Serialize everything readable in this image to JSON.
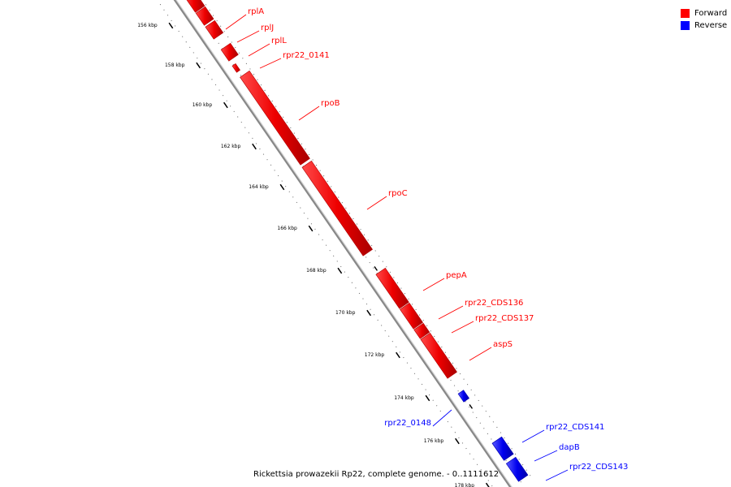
{
  "colors": {
    "forward": "#ff0000",
    "reverse": "#0000ff",
    "backbone": "#999999",
    "tick": "#000000"
  },
  "legend": {
    "items": [
      {
        "key": "forward",
        "label": "Forward"
      },
      {
        "key": "reverse",
        "label": "Reverse"
      }
    ]
  },
  "caption": "Rickettsia prowazekii Rp22, complete genome. - 0..1111612",
  "ruler": {
    "tick_labels": [
      "156 kbp",
      "158 kbp",
      "160 kbp",
      "162 kbp",
      "164 kbp",
      "166 kbp",
      "168 kbp",
      "170 kbp",
      "172 kbp",
      "174 kbp",
      "176 kbp",
      "178 kbp"
    ]
  },
  "genes": [
    {
      "name": "rplA",
      "strand": "forward"
    },
    {
      "name": "rplJ",
      "strand": "forward"
    },
    {
      "name": "rplL",
      "strand": "forward"
    },
    {
      "name": "rpr22_0141",
      "strand": "forward"
    },
    {
      "name": "rpoB",
      "strand": "forward"
    },
    {
      "name": "rpoC",
      "strand": "forward"
    },
    {
      "name": "pepA",
      "strand": "forward"
    },
    {
      "name": "rpr22_CDS136",
      "strand": "forward"
    },
    {
      "name": "rpr22_CDS137",
      "strand": "forward"
    },
    {
      "name": "aspS",
      "strand": "forward"
    },
    {
      "name": "rpr22_0148",
      "strand": "reverse"
    },
    {
      "name": "rpr22_CDS141",
      "strand": "reverse"
    },
    {
      "name": "dapB",
      "strand": "reverse"
    },
    {
      "name": "rpr22_CDS143",
      "strand": "reverse"
    }
  ]
}
